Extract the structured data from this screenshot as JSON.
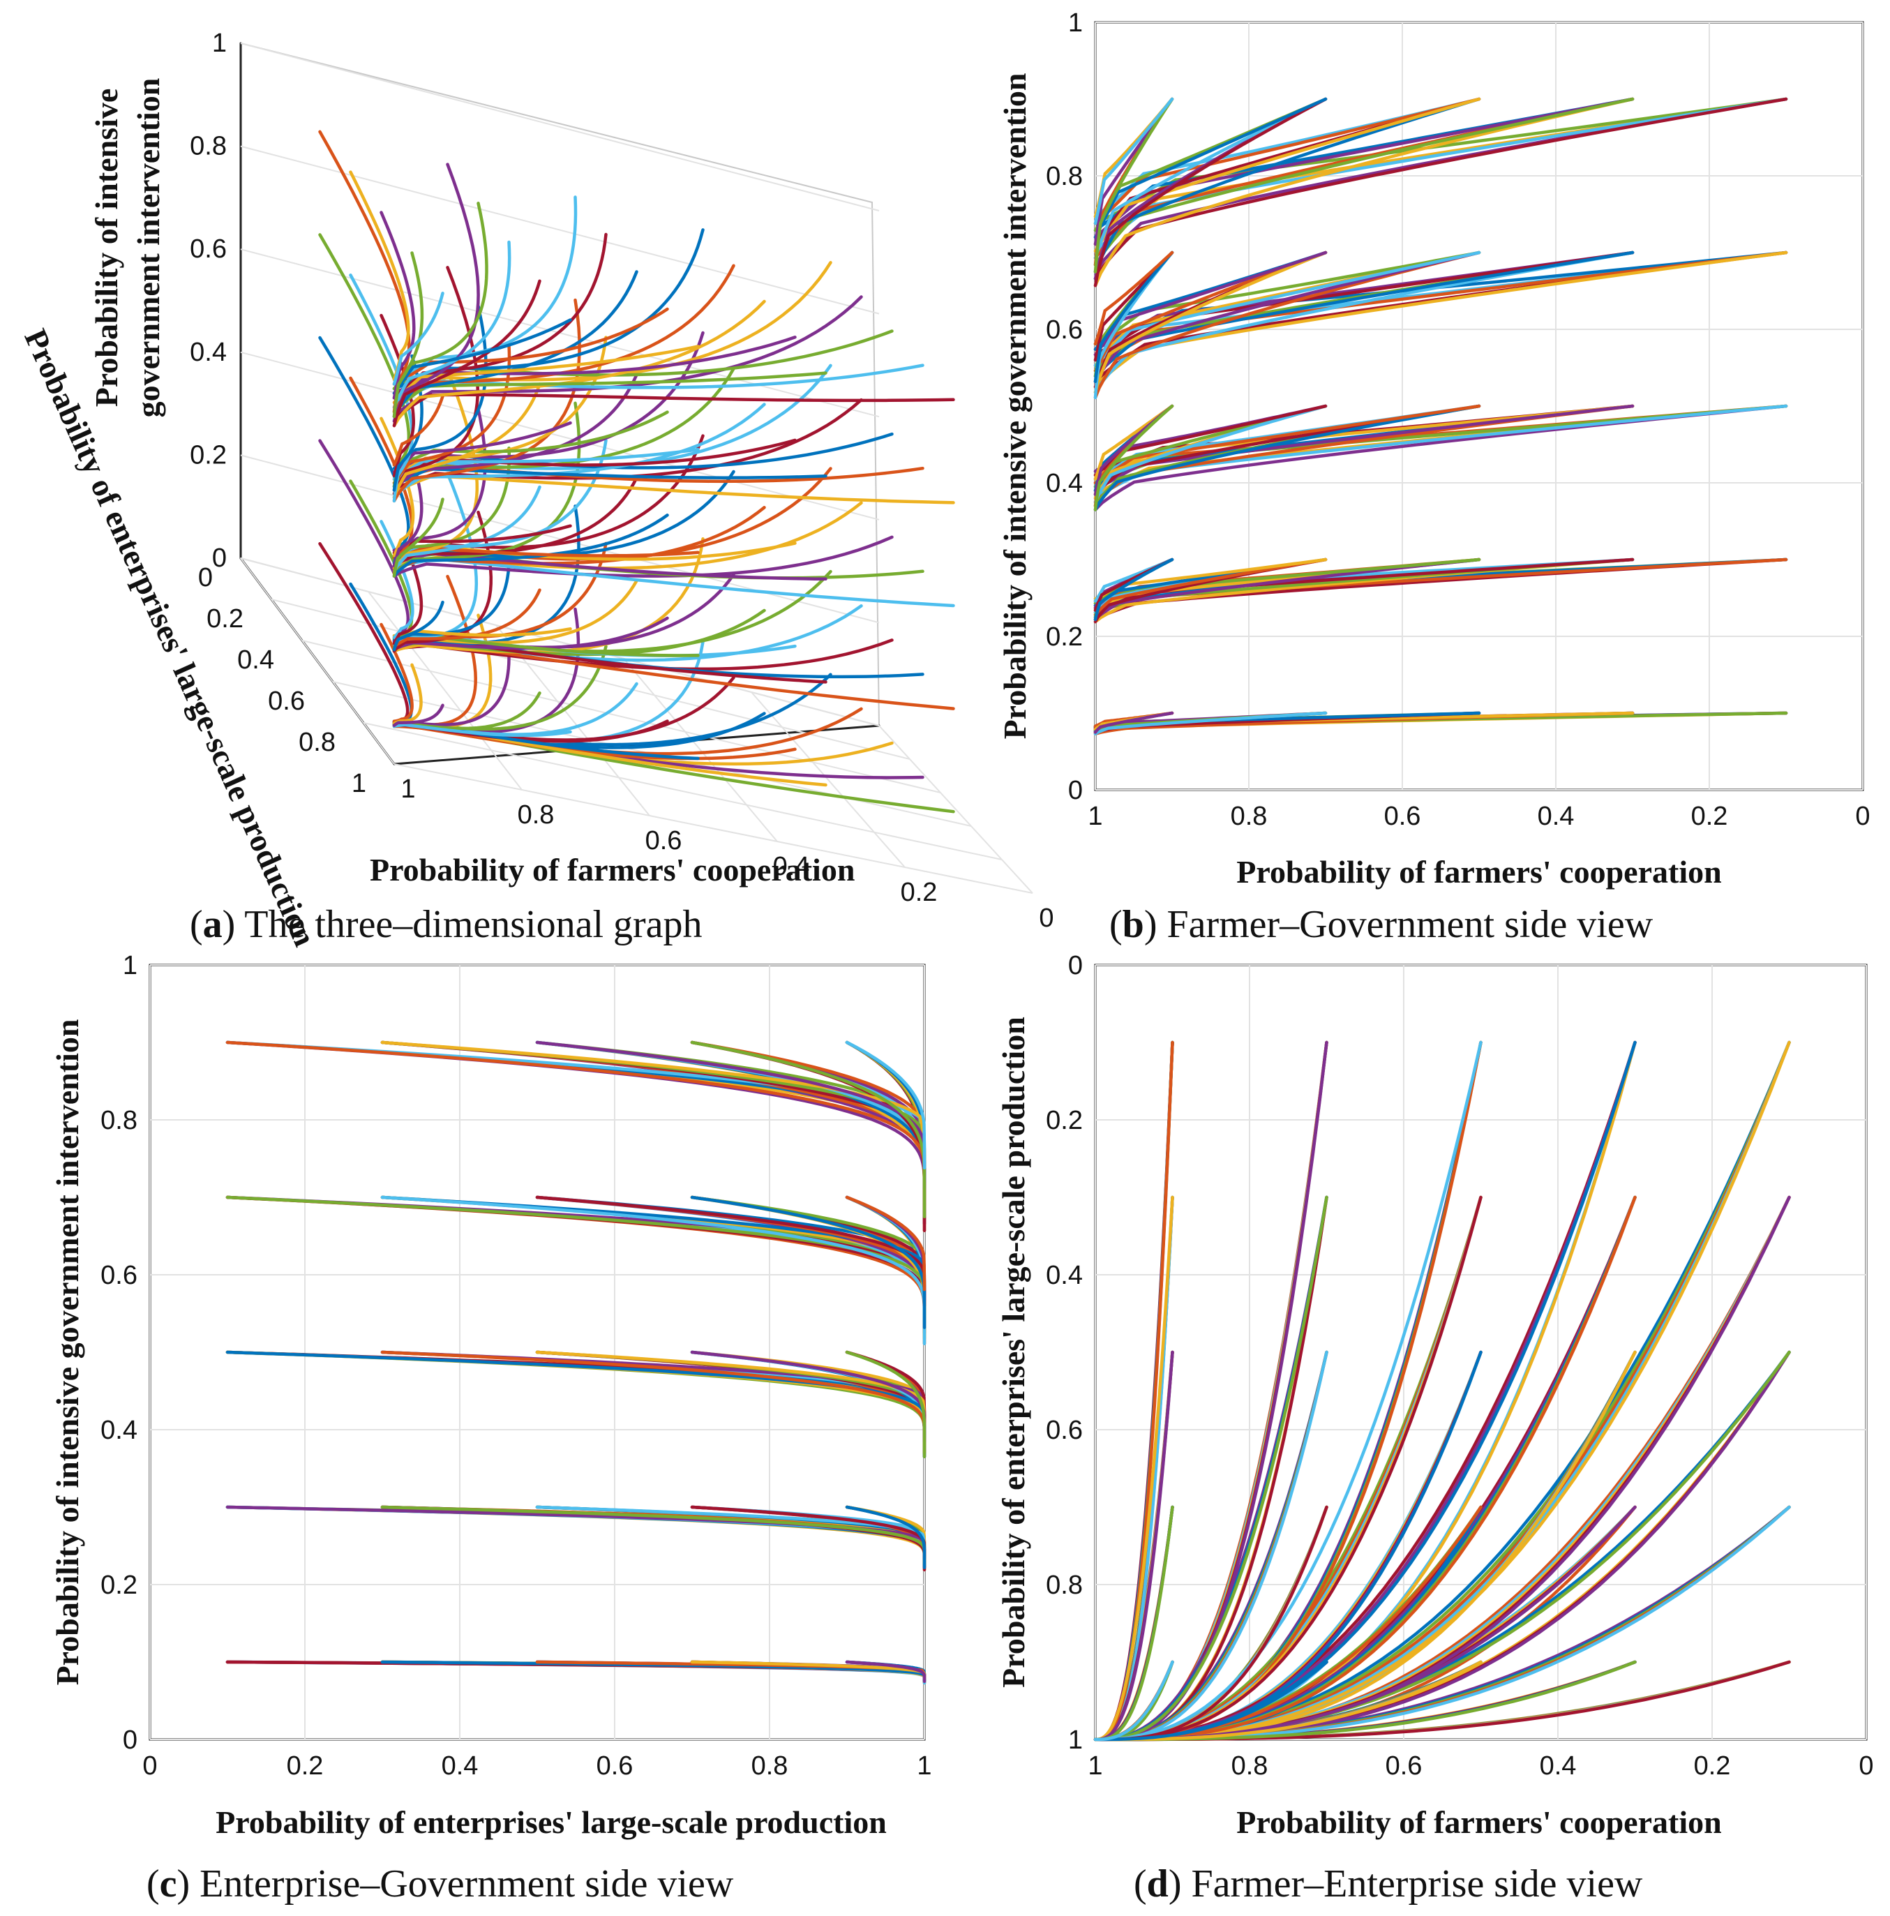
{
  "figure": {
    "colors": [
      "#0072BD",
      "#D95319",
      "#EDB120",
      "#7E2F8E",
      "#77AC30",
      "#4DBEEE",
      "#A2142F"
    ]
  },
  "chart_data": [
    {
      "id": "a",
      "type": "line",
      "view": "3d",
      "caption_letter": "a",
      "caption_text": "The three–dimensional graph",
      "xlabel": "Probability of farmers' cooperation",
      "ylabel": "Probability of enterprises' large-scale production",
      "zlabel_lines": [
        "Probability of intensive",
        "government intervention"
      ],
      "x_ticks": [
        "1",
        "0.8",
        "0.6",
        "0.4",
        "0.2",
        "0"
      ],
      "y_ticks": [
        "0",
        "0.2",
        "0.4",
        "0.6",
        "0.8",
        "1"
      ],
      "z_ticks": [
        "0",
        "0.2",
        "0.4",
        "0.6",
        "0.8",
        "1"
      ],
      "xlim": [
        1,
        0
      ],
      "ylim": [
        0,
        1
      ],
      "zlim": [
        0,
        1
      ],
      "initial_values": [
        0.1,
        0.3,
        0.5,
        0.7,
        0.9
      ],
      "grid": true
    },
    {
      "id": "b",
      "type": "line",
      "caption_letter": "b",
      "caption_text": "Farmer–Government side view",
      "xlabel": "Probability of farmers' cooperation",
      "ylabel": "Probability of intensive government intervention",
      "x_ticks": [
        "1",
        "0.8",
        "0.6",
        "0.4",
        "0.2",
        "0"
      ],
      "y_ticks": [
        "0",
        "0.2",
        "0.4",
        "0.6",
        "0.8",
        "1"
      ],
      "xlim": [
        1,
        0
      ],
      "ylim": [
        0,
        1
      ],
      "initial_values": [
        0.1,
        0.3,
        0.5,
        0.7,
        0.9
      ],
      "grid": true
    },
    {
      "id": "c",
      "type": "line",
      "caption_letter": "c",
      "caption_text": "Enterprise–Government side view",
      "xlabel": "Probability of enterprises' large-scale production",
      "ylabel": "Probability of intensive government intervention",
      "x_ticks": [
        "0",
        "0.2",
        "0.4",
        "0.6",
        "0.8",
        "1"
      ],
      "y_ticks": [
        "0",
        "0.2",
        "0.4",
        "0.6",
        "0.8",
        "1"
      ],
      "xlim": [
        0,
        1
      ],
      "ylim": [
        0,
        1
      ],
      "initial_values": [
        0.1,
        0.3,
        0.5,
        0.7,
        0.9
      ],
      "grid": true
    },
    {
      "id": "d",
      "type": "line",
      "caption_letter": "d",
      "caption_text": "Farmer–Enterprise side view",
      "xlabel": "Probability of farmers' cooperation",
      "ylabel": "Probability of enterprises' large-scale production",
      "x_ticks": [
        "1",
        "0.8",
        "0.6",
        "0.4",
        "0.2",
        "0"
      ],
      "y_ticks": [
        "0",
        "0.2",
        "0.4",
        "0.6",
        "0.8",
        "1"
      ],
      "xlim": [
        1,
        0
      ],
      "ylim": [
        0,
        1
      ],
      "initial_values": [
        0.1,
        0.3,
        0.5,
        0.7,
        0.9
      ],
      "grid": true
    }
  ]
}
